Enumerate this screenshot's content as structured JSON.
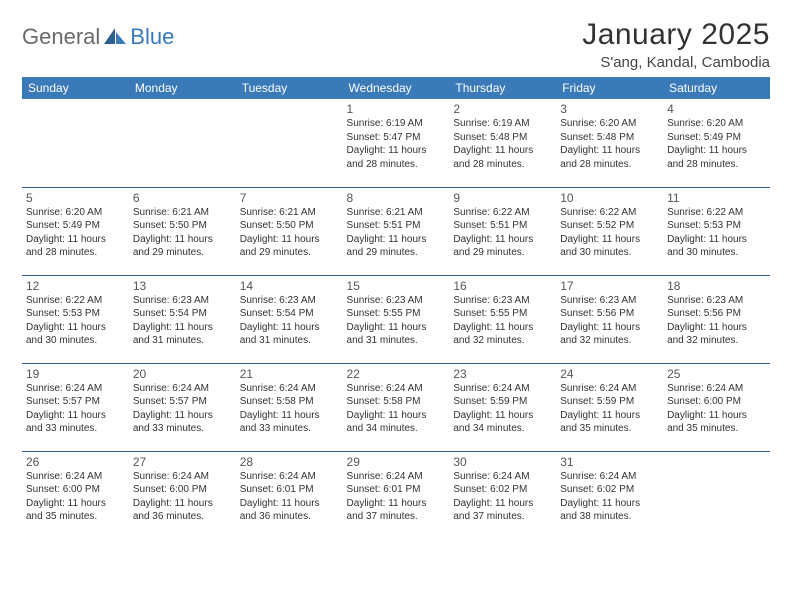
{
  "logo": {
    "text1": "General",
    "text2": "Blue"
  },
  "title": "January 2025",
  "location": "S'ang, Kandal, Cambodia",
  "colors": {
    "header_bg": "#3a7ab8",
    "header_text": "#ffffff",
    "row_border": "#2f5f8f",
    "logo_gray": "#6a6a6a",
    "logo_blue": "#3a7ab8"
  },
  "daynames": [
    "Sunday",
    "Monday",
    "Tuesday",
    "Wednesday",
    "Thursday",
    "Friday",
    "Saturday"
  ],
  "weeks": [
    [
      {
        "n": "",
        "sr": "",
        "ss": "",
        "dl": ""
      },
      {
        "n": "",
        "sr": "",
        "ss": "",
        "dl": ""
      },
      {
        "n": "",
        "sr": "",
        "ss": "",
        "dl": ""
      },
      {
        "n": "1",
        "sr": "6:19 AM",
        "ss": "5:47 PM",
        "dl": "11 hours and 28 minutes."
      },
      {
        "n": "2",
        "sr": "6:19 AM",
        "ss": "5:48 PM",
        "dl": "11 hours and 28 minutes."
      },
      {
        "n": "3",
        "sr": "6:20 AM",
        "ss": "5:48 PM",
        "dl": "11 hours and 28 minutes."
      },
      {
        "n": "4",
        "sr": "6:20 AM",
        "ss": "5:49 PM",
        "dl": "11 hours and 28 minutes."
      }
    ],
    [
      {
        "n": "5",
        "sr": "6:20 AM",
        "ss": "5:49 PM",
        "dl": "11 hours and 28 minutes."
      },
      {
        "n": "6",
        "sr": "6:21 AM",
        "ss": "5:50 PM",
        "dl": "11 hours and 29 minutes."
      },
      {
        "n": "7",
        "sr": "6:21 AM",
        "ss": "5:50 PM",
        "dl": "11 hours and 29 minutes."
      },
      {
        "n": "8",
        "sr": "6:21 AM",
        "ss": "5:51 PM",
        "dl": "11 hours and 29 minutes."
      },
      {
        "n": "9",
        "sr": "6:22 AM",
        "ss": "5:51 PM",
        "dl": "11 hours and 29 minutes."
      },
      {
        "n": "10",
        "sr": "6:22 AM",
        "ss": "5:52 PM",
        "dl": "11 hours and 30 minutes."
      },
      {
        "n": "11",
        "sr": "6:22 AM",
        "ss": "5:53 PM",
        "dl": "11 hours and 30 minutes."
      }
    ],
    [
      {
        "n": "12",
        "sr": "6:22 AM",
        "ss": "5:53 PM",
        "dl": "11 hours and 30 minutes."
      },
      {
        "n": "13",
        "sr": "6:23 AM",
        "ss": "5:54 PM",
        "dl": "11 hours and 31 minutes."
      },
      {
        "n": "14",
        "sr": "6:23 AM",
        "ss": "5:54 PM",
        "dl": "11 hours and 31 minutes."
      },
      {
        "n": "15",
        "sr": "6:23 AM",
        "ss": "5:55 PM",
        "dl": "11 hours and 31 minutes."
      },
      {
        "n": "16",
        "sr": "6:23 AM",
        "ss": "5:55 PM",
        "dl": "11 hours and 32 minutes."
      },
      {
        "n": "17",
        "sr": "6:23 AM",
        "ss": "5:56 PM",
        "dl": "11 hours and 32 minutes."
      },
      {
        "n": "18",
        "sr": "6:23 AM",
        "ss": "5:56 PM",
        "dl": "11 hours and 32 minutes."
      }
    ],
    [
      {
        "n": "19",
        "sr": "6:24 AM",
        "ss": "5:57 PM",
        "dl": "11 hours and 33 minutes."
      },
      {
        "n": "20",
        "sr": "6:24 AM",
        "ss": "5:57 PM",
        "dl": "11 hours and 33 minutes."
      },
      {
        "n": "21",
        "sr": "6:24 AM",
        "ss": "5:58 PM",
        "dl": "11 hours and 33 minutes."
      },
      {
        "n": "22",
        "sr": "6:24 AM",
        "ss": "5:58 PM",
        "dl": "11 hours and 34 minutes."
      },
      {
        "n": "23",
        "sr": "6:24 AM",
        "ss": "5:59 PM",
        "dl": "11 hours and 34 minutes."
      },
      {
        "n": "24",
        "sr": "6:24 AM",
        "ss": "5:59 PM",
        "dl": "11 hours and 35 minutes."
      },
      {
        "n": "25",
        "sr": "6:24 AM",
        "ss": "6:00 PM",
        "dl": "11 hours and 35 minutes."
      }
    ],
    [
      {
        "n": "26",
        "sr": "6:24 AM",
        "ss": "6:00 PM",
        "dl": "11 hours and 35 minutes."
      },
      {
        "n": "27",
        "sr": "6:24 AM",
        "ss": "6:00 PM",
        "dl": "11 hours and 36 minutes."
      },
      {
        "n": "28",
        "sr": "6:24 AM",
        "ss": "6:01 PM",
        "dl": "11 hours and 36 minutes."
      },
      {
        "n": "29",
        "sr": "6:24 AM",
        "ss": "6:01 PM",
        "dl": "11 hours and 37 minutes."
      },
      {
        "n": "30",
        "sr": "6:24 AM",
        "ss": "6:02 PM",
        "dl": "11 hours and 37 minutes."
      },
      {
        "n": "31",
        "sr": "6:24 AM",
        "ss": "6:02 PM",
        "dl": "11 hours and 38 minutes."
      },
      {
        "n": "",
        "sr": "",
        "ss": "",
        "dl": ""
      }
    ]
  ],
  "labels": {
    "sunrise": "Sunrise:",
    "sunset": "Sunset:",
    "daylight": "Daylight:"
  }
}
